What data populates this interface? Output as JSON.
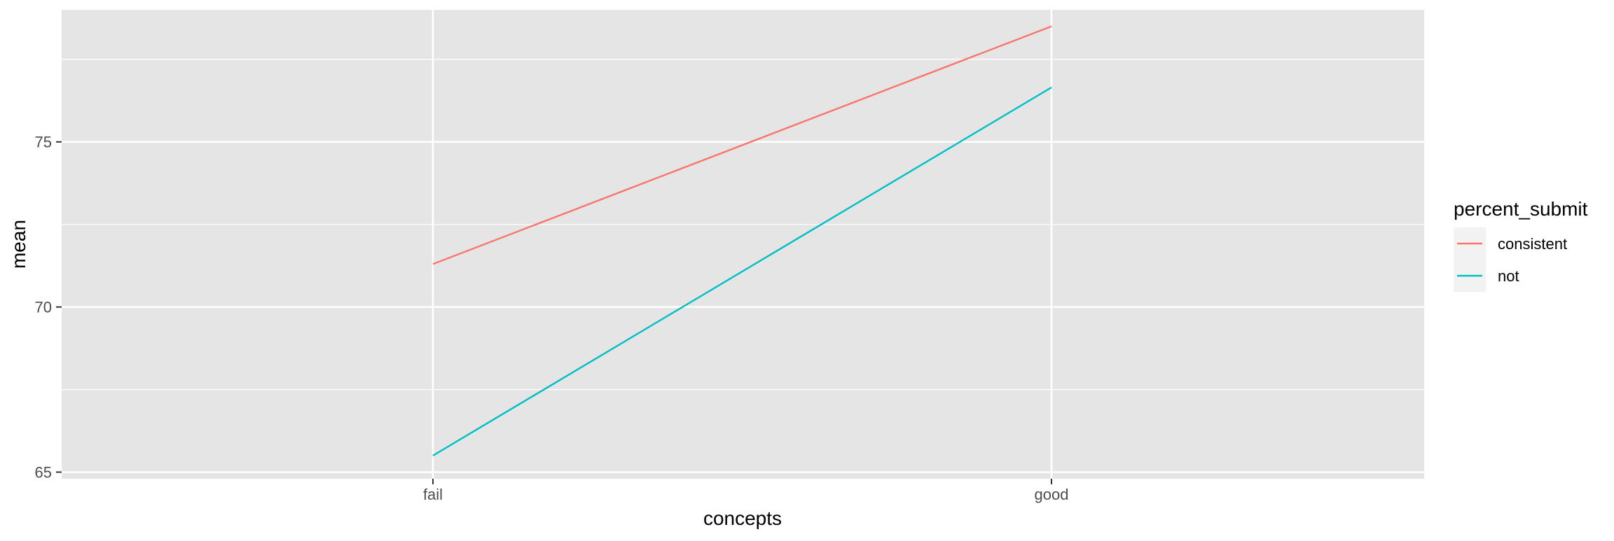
{
  "chart_data": {
    "type": "line",
    "xlabel": "concepts",
    "ylabel": "mean",
    "categories": [
      "fail",
      "good"
    ],
    "ylim": [
      64.8,
      79.0
    ],
    "yticks": [
      65,
      70,
      75
    ],
    "grid": true,
    "legend_position": "right",
    "legend_title": "percent_submit",
    "panel_background": "#e5e5e5",
    "grid_color": "#ffffff",
    "series": [
      {
        "name": "consistent",
        "color": "#f8766d",
        "values": [
          71.3,
          78.5
        ]
      },
      {
        "name": "not",
        "color": "#00bfc4",
        "values": [
          65.5,
          76.65
        ]
      }
    ]
  }
}
